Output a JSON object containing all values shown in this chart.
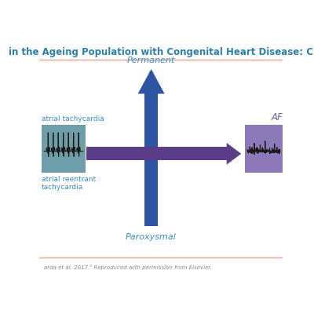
{
  "title": "in the Ageing Population with Congenital Heart Disease: C",
  "title_color": "#2d7fa8",
  "title_fontsize": 8.5,
  "background_color": "#ffffff",
  "border_color": "#e8a090",
  "permanent_label": "Permanent",
  "paroxysmal_label": "Paroxysmal",
  "atrial_tachy_label": "atrial tachycardia",
  "atrial_reentrant_label": "atrial reentrant\ntachycardia",
  "af_label": "AF",
  "citation": "arda et al. 2017.⁵ Reproduced with permission from Elsevier.",
  "blue_arrow_color": "#2e55a3",
  "purple_arrow_color": "#5b3d8a",
  "teal_box_color": "#6e9ea8",
  "purple_box_color": "#8b79b8",
  "label_color_blue": "#3d8bbf",
  "label_color_purple": "#7b5ea7",
  "label_color_af": "#7b5ea7",
  "label_color_tachy": "#3d8bbf",
  "label_color_dark": "#555555"
}
